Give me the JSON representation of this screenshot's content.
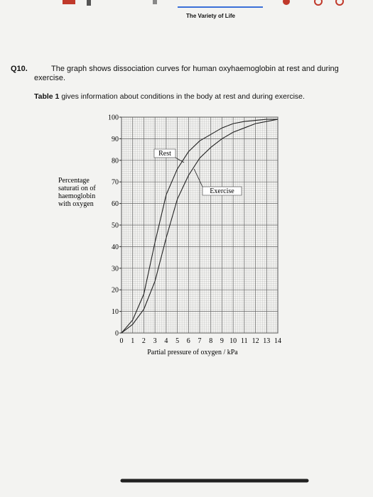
{
  "header": {
    "title": "The Variety of Life"
  },
  "question": {
    "number": "Q10.",
    "text": "The graph shows dissociation curves for human oxyhaemoglobin at rest and during exercise.",
    "table_ref": "Table 1",
    "table_text": " gives information about conditions in the body at rest and during exercise."
  },
  "chart_data": {
    "type": "line",
    "xlabel": "Partial pressure of oxygen / kPa",
    "ylabel_lines": [
      "Percentage",
      "saturati on of",
      "haemoglobin",
      "with oxygen"
    ],
    "x": [
      0,
      1,
      2,
      3,
      4,
      5,
      6,
      7,
      8,
      9,
      10,
      11,
      12,
      13,
      14
    ],
    "series": [
      {
        "name": "Rest",
        "color": "#222222",
        "values": [
          0,
          6,
          18,
          42,
          64,
          76,
          84,
          89,
          92,
          95,
          97,
          98,
          98.5,
          99,
          99
        ]
      },
      {
        "name": "Exercise",
        "color": "#222222",
        "values": [
          0,
          4,
          11,
          24,
          44,
          62,
          73,
          81,
          86,
          90,
          93,
          95,
          97,
          98,
          99
        ]
      }
    ],
    "xlim": [
      0,
      14
    ],
    "ylim": [
      0,
      100
    ],
    "xticks": [
      0,
      1,
      2,
      3,
      4,
      5,
      6,
      7,
      8,
      9,
      10,
      11,
      12,
      13,
      14
    ],
    "yticks": [
      0,
      10,
      20,
      30,
      40,
      50,
      60,
      70,
      80,
      90,
      100
    ],
    "grid": true
  }
}
